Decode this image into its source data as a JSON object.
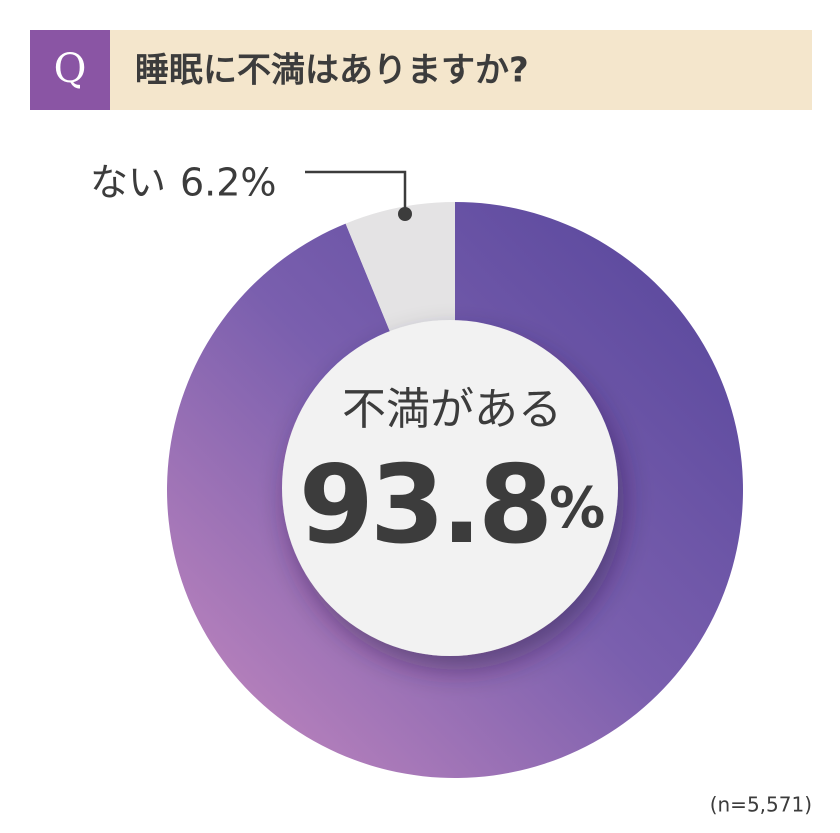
{
  "badge": "Q",
  "chart_data": {
    "type": "pie",
    "title": "睡眠に不満はありますか?",
    "categories": [
      "不満がある",
      "ない"
    ],
    "values": [
      93.8,
      6.2
    ],
    "value_labels": [
      "93.8%",
      "6.2%"
    ],
    "colors": [
      "#7a5fae",
      "#e4e3e4"
    ],
    "note": "(n=5,571)"
  }
}
